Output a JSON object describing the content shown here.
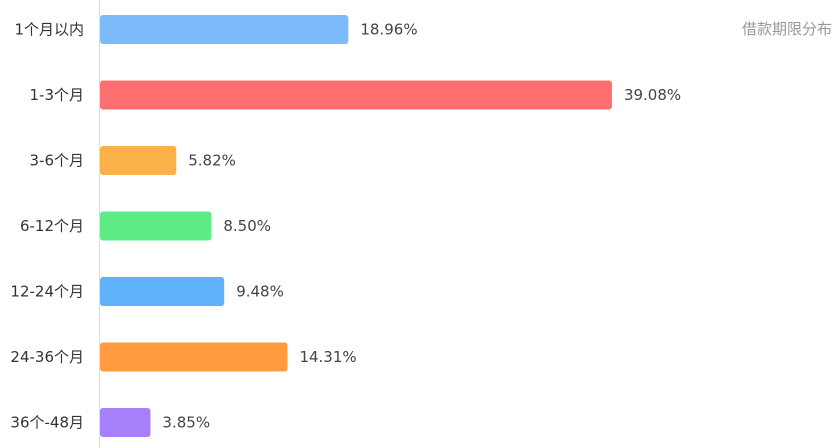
{
  "chart_data": {
    "type": "bar",
    "orientation": "horizontal",
    "title": "借款期限分布",
    "categories": [
      "1个月以内",
      "1-3个月",
      "3-6个月",
      "6-12个月",
      "12-24个月",
      "24-36个月",
      "36个-48月"
    ],
    "values": [
      18.96,
      39.08,
      5.82,
      8.5,
      9.48,
      14.31,
      3.85
    ],
    "value_labels": [
      "18.96%",
      "39.08%",
      "5.82%",
      "8.50%",
      "9.48%",
      "14.31%",
      "3.85%"
    ],
    "unit": "%",
    "colors": [
      "#7bbbfa",
      "#ff6f70",
      "#fbb04a",
      "#5deb86",
      "#5fb3fb",
      "#ff9a3f",
      "#a67ffb"
    ],
    "axis_color": "#dddddd",
    "grid": false,
    "legend": "none",
    "title_position": "top-right"
  }
}
